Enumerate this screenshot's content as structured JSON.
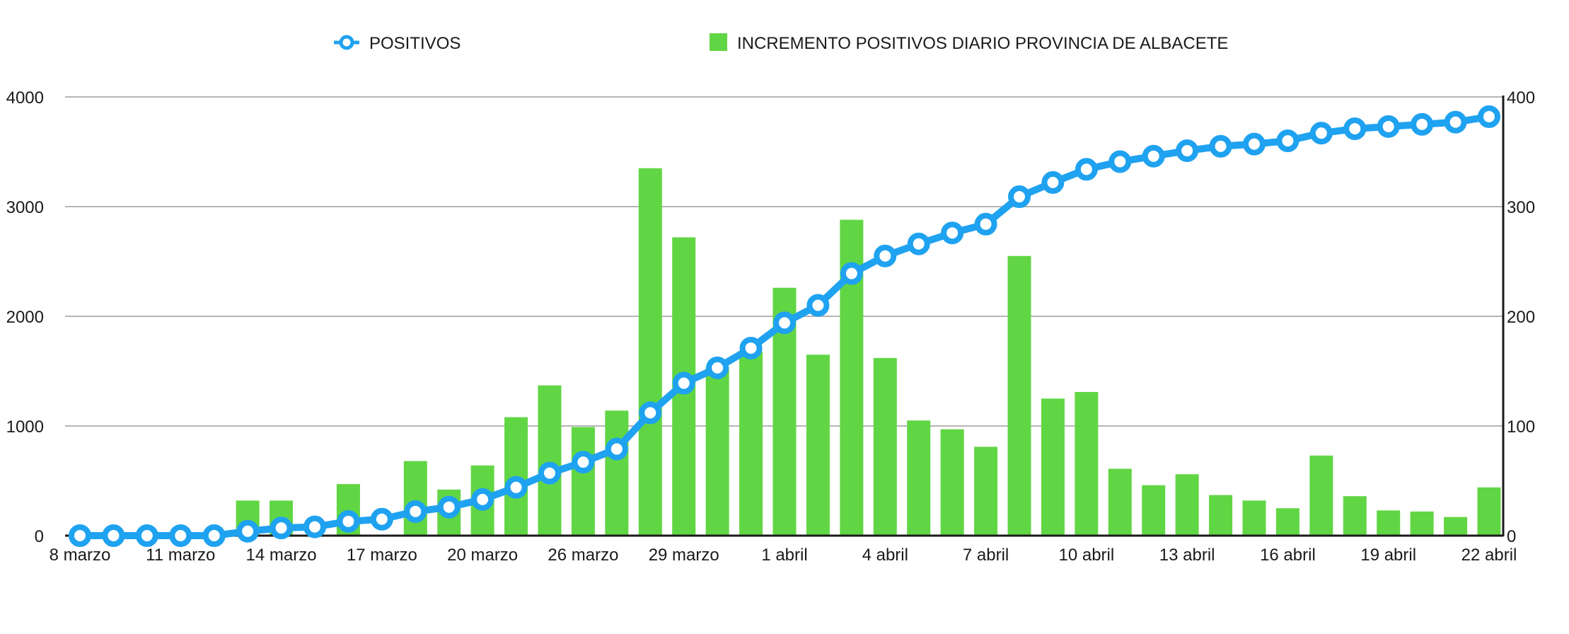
{
  "chart_data": {
    "type": "bar",
    "categories": [
      "8 marzo",
      "9 marzo",
      "10 marzo",
      "11 marzo",
      "12 marzo",
      "13 marzo",
      "14 marzo",
      "15 marzo",
      "16 marzo",
      "17 marzo",
      "18 marzo",
      "19 marzo",
      "20 marzo",
      "21 marzo",
      "25 marzo",
      "26 marzo",
      "27 marzo",
      "28 marzo",
      "29 marzo",
      "30 marzo",
      "31 marzo",
      "1 abril",
      "2 abril",
      "3 abril",
      "4 abril",
      "5 abril",
      "6 abril",
      "7 abril",
      "8 abril",
      "9 abril",
      "10 abril",
      "11 abril",
      "12 abril",
      "13 abril",
      "14 abril",
      "15 abril",
      "16 abril",
      "17 abril",
      "18 abril",
      "19 abril",
      "20 abril",
      "21 abril",
      "22 abril"
    ],
    "x_tick_labels": [
      "8 marzo",
      "11 marzo",
      "14 marzo",
      "17 marzo",
      "20 marzo",
      "26 marzo",
      "29 marzo",
      "1 abril",
      "4 abril",
      "7 abril",
      "10 abril",
      "13 abril",
      "16 abril",
      "19 abril",
      "22 abril"
    ],
    "series": [
      {
        "name": "POSITIVOS",
        "type": "line",
        "axis": "left",
        "color": "#1fa2f0",
        "values": [
          0,
          0,
          0,
          0,
          0,
          40,
          70,
          80,
          130,
          150,
          220,
          260,
          330,
          440,
          570,
          670,
          790,
          1120,
          1390,
          1530,
          1710,
          1940,
          2100,
          2390,
          2550,
          2660,
          2760,
          2840,
          3090,
          3220,
          3340,
          3410,
          3460,
          3510,
          3550,
          3570,
          3600,
          3670,
          3710,
          3730,
          3750,
          3770,
          3820
        ]
      },
      {
        "name": "INCREMENTO POSITIVOS DIARIO PROVINCIA DE ALBACETE",
        "type": "bar",
        "axis": "right",
        "color": "#61d644",
        "values": [
          null,
          null,
          null,
          null,
          null,
          32,
          32,
          null,
          47,
          null,
          68,
          42,
          64,
          108,
          137,
          99,
          114,
          335,
          272,
          154,
          168,
          226,
          165,
          288,
          162,
          105,
          97,
          81,
          255,
          125,
          131,
          61,
          46,
          56,
          37,
          32,
          25,
          73,
          36,
          23,
          22,
          17,
          44
        ]
      }
    ],
    "y_left": {
      "ticks": [
        "0",
        "1000",
        "2000",
        "3000",
        "4000"
      ],
      "range": [
        0,
        4000
      ]
    },
    "y_right": {
      "ticks": [
        "0",
        "100",
        "200",
        "300",
        "400"
      ],
      "range": [
        0,
        400
      ]
    },
    "grid": true,
    "legend_position": "top"
  }
}
